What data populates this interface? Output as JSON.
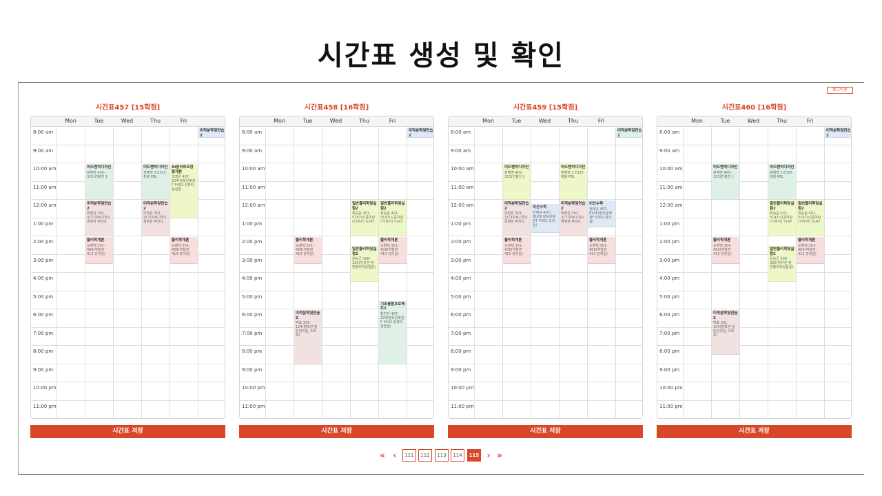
{
  "slide_title": "시간표 생성 및 확인",
  "logout_label": "로그아웃",
  "days": [
    "Mon",
    "Tue",
    "Wed",
    "Thu",
    "Fri"
  ],
  "hours": [
    "8:00 am",
    "9:00 am",
    "10:00 am",
    "11:00 am",
    "12:00 am",
    "1:00 pm",
    "2:00 pm",
    "3:00 pm",
    "4:00 pm",
    "5:00 pm",
    "6:00 pm",
    "7:00 pm",
    "8:00 pm",
    "9:00 pm",
    "10:00 pm",
    "11:00 pm"
  ],
  "save_label": "시간표 저장",
  "colors": {
    "accent": "#d9472b",
    "green": "#dff1e6",
    "yellow": "#eef7c7",
    "pink": "#f8dede",
    "rose": "#f1e1e1",
    "blue": "#dfe9f6"
  },
  "timetables": [
    {
      "title": "시간표457 [15학점]",
      "courses": [
        {
          "day": 5,
          "start": 8,
          "end": 8.6,
          "color": "blue",
          "title": "미적분학및연습2",
          "detail": ""
        },
        {
          "day": 1,
          "start": 10,
          "end": 12,
          "color": "green",
          "title": "어드벤처디자인",
          "detail": "정혜명 405-325(컨볼전 1"
        },
        {
          "day": 3,
          "start": 10,
          "end": 12,
          "color": "green",
          "title": "어드벤처디자인",
          "detail": "정혜명 3 E325 정볼 PBL"
        },
        {
          "day": 4,
          "start": 10,
          "end": 13,
          "color": "yellow",
          "title": "AI윤리와조정합개론",
          "detail": "조영은 407-224(정보문화관F P403 컨퓨터실실습"
        },
        {
          "day": 1,
          "start": 12,
          "end": 14,
          "color": "rose",
          "title": "미적분학및연습2",
          "detail": "박형은 301-317(자료고학)/경영관 M301"
        },
        {
          "day": 3,
          "start": 12,
          "end": 14,
          "color": "rose",
          "title": "미적분학및연습2",
          "detail": "박형은 301-317(자료고학)/경영관 M301"
        },
        {
          "day": 1,
          "start": 14,
          "end": 15.5,
          "color": "pink",
          "title": "물리학개론",
          "detail": "오향택 301-409(약칠관 413 강의실)"
        },
        {
          "day": 4,
          "start": 14,
          "end": 15.5,
          "color": "pink",
          "title": "물리학개론",
          "detail": "오향택 301-409(약칠관 413 강의실)"
        }
      ]
    },
    {
      "title": "시간표458 [16학점]",
      "courses": [
        {
          "day": 5,
          "start": 8,
          "end": 8.6,
          "color": "blue",
          "title": "미적분학및연습2",
          "detail": ""
        },
        {
          "day": 3,
          "start": 12,
          "end": 14,
          "color": "yellow",
          "title": "일반물리학및실험2",
          "detail": "류승윤 401-5147(신공학관(7)학사) 5147"
        },
        {
          "day": 4,
          "start": 12,
          "end": 14,
          "color": "yellow",
          "title": "일반물리학및실험2",
          "detail": "류승윤 401-5147(신공학관(7)학사) 5147"
        },
        {
          "day": 1,
          "start": 14,
          "end": 15.5,
          "color": "pink",
          "title": "물리학개론",
          "detail": "오향택 301-409(약칠관 413 강의실)"
        },
        {
          "day": 4,
          "start": 14,
          "end": 15.5,
          "color": "pink",
          "title": "물리학개론",
          "detail": "오향택 301-409(약칠관 413 강의실)"
        },
        {
          "day": 3,
          "start": 14.5,
          "end": 16.5,
          "color": "yellow",
          "title": "일반물리학및실험2",
          "detail": "윤승군 308-325(자유관 정 반물리학실험실)"
        },
        {
          "day": 4,
          "start": 17.5,
          "end": 21,
          "color": "green",
          "title": "기초융합프로젝트2",
          "detail": "황민선 407-224(정보문화관F P403 컴퓨터실습실)"
        },
        {
          "day": 1,
          "start": 18,
          "end": 21,
          "color": "rose",
          "title": "미적분학및연습2",
          "detail": "박효 301-124(법학관 밀린강의실_스마트)"
        }
      ]
    },
    {
      "title": "시간표459 [15학점]",
      "courses": [
        {
          "day": 5,
          "start": 8,
          "end": 8.6,
          "color": "green",
          "title": "미적분학및연습2",
          "detail": ""
        },
        {
          "day": 1,
          "start": 10,
          "end": 12,
          "color": "yellow",
          "title": "어드벤처디자인",
          "detail": "정혜명 405-325(컨볼전 1"
        },
        {
          "day": 3,
          "start": 10,
          "end": 12,
          "color": "yellow",
          "title": "어드벤처디자인",
          "detail": "정혜명 3 E325 정볼 PBL"
        },
        {
          "day": 1,
          "start": 12,
          "end": 14,
          "color": "rose",
          "title": "미적분학및연습2",
          "detail": "박형은 301-317(자료고학)/경영관 M301"
        },
        {
          "day": 3,
          "start": 12,
          "end": 14,
          "color": "rose",
          "title": "미적분학및연습2",
          "detail": "박형은 301-317(자료고학)/경영관 M301"
        },
        {
          "day": 2,
          "start": 12.2,
          "end": 13.8,
          "color": "blue",
          "title": "이산수학",
          "detail": "전태규 407-8105(정보문화관F P202 강의실)"
        },
        {
          "day": 4,
          "start": 12,
          "end": 13.5,
          "color": "blue",
          "title": "이산수학",
          "detail": "전태규 407-8105(정보문화관F P202 강의실)"
        },
        {
          "day": 1,
          "start": 14,
          "end": 15.5,
          "color": "pink",
          "title": "물리학개론",
          "detail": "오향택 301-409(약칠관 413 강의실)"
        },
        {
          "day": 4,
          "start": 14,
          "end": 15.5,
          "color": "pink",
          "title": "물리학개론",
          "detail": "오향택 301-409(약칠관 413 강의실)"
        }
      ]
    },
    {
      "title": "시간표460 [16학점]",
      "courses": [
        {
          "day": 5,
          "start": 8,
          "end": 8.6,
          "color": "blue",
          "title": "미적분학및연습2",
          "detail": ""
        },
        {
          "day": 1,
          "start": 10,
          "end": 12,
          "color": "green",
          "title": "어드벤처디자인",
          "detail": "정혜명 405-325(컨볼전 1"
        },
        {
          "day": 3,
          "start": 10,
          "end": 12,
          "color": "green",
          "title": "어드벤처디자인",
          "detail": "정혜명 3 E325 정볼 PBL"
        },
        {
          "day": 3,
          "start": 12,
          "end": 14,
          "color": "yellow",
          "title": "일반물리학및실험2",
          "detail": "류승윤 401-5147(신공학관(7)학사) 5147"
        },
        {
          "day": 4,
          "start": 12,
          "end": 14,
          "color": "yellow",
          "title": "일반물리학및실험2",
          "detail": "류승윤 401-5147(신공학관(7)학사) 5147"
        },
        {
          "day": 1,
          "start": 14,
          "end": 15.5,
          "color": "pink",
          "title": "물리학개론",
          "detail": "오향택 301-409(약칠관 413 강의실)"
        },
        {
          "day": 4,
          "start": 14,
          "end": 15.5,
          "color": "pink",
          "title": "물리학개론",
          "detail": "오향택 301-409(약칠관 413 강의실)"
        },
        {
          "day": 3,
          "start": 14.5,
          "end": 16.5,
          "color": "yellow",
          "title": "일반물리학및실험2",
          "detail": "윤승군 308-325(자유관 정 반물리학실험실)"
        },
        {
          "day": 1,
          "start": 18,
          "end": 20.5,
          "color": "rose",
          "title": "미적분학및연습2",
          "detail": "박효 301-124(법학관 밀린강의실_스마트)"
        }
      ]
    }
  ],
  "pagination": {
    "first": "«",
    "prev": "‹",
    "next": "›",
    "last": "»",
    "pages": [
      "111",
      "112",
      "113",
      "114",
      "115"
    ],
    "active": "115"
  }
}
